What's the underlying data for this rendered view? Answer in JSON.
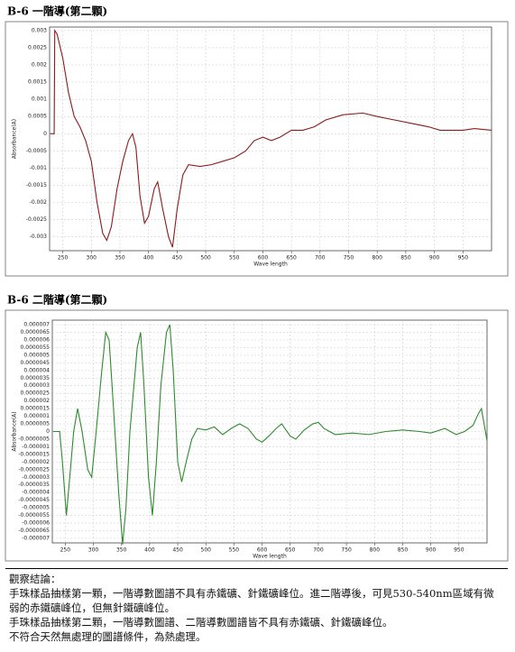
{
  "chart_data": [
    {
      "type": "line",
      "title": "B-6 一階導(第二顆)",
      "x_label": "Wave length",
      "y_label": "Absorbance(A)",
      "color": "#8b1a1a",
      "grid": true,
      "xlim": [
        227,
        1000
      ],
      "ylim": [
        -0.0034,
        0.0031
      ],
      "xticks": [
        250,
        300,
        350,
        400,
        450,
        500,
        550,
        600,
        650,
        700,
        750,
        800,
        850,
        900,
        950
      ],
      "yticks": [
        0.003,
        0.0025,
        0.002,
        0.0015,
        0.001,
        0.0005,
        0,
        -0.0005,
        -0.001,
        -0.0015,
        -0.002,
        -0.0025,
        -0.003
      ],
      "x": [
        228,
        235,
        236,
        240,
        250,
        260,
        270,
        280,
        290,
        300,
        310,
        320,
        327,
        335,
        345,
        355,
        365,
        372,
        378,
        385,
        393,
        400,
        410,
        416,
        425,
        435,
        442,
        450,
        460,
        470,
        490,
        510,
        530,
        550,
        570,
        585,
        600,
        615,
        630,
        650,
        670,
        690,
        710,
        740,
        775,
        800,
        830,
        860,
        890,
        910,
        930,
        950,
        970,
        1000
      ],
      "values": [
        0,
        0,
        0.003,
        0.0029,
        0.0022,
        0.0012,
        0.0005,
        0.0002,
        -0.0002,
        -0.0008,
        -0.002,
        -0.0029,
        -0.0031,
        -0.0027,
        -0.0016,
        -0.0008,
        -0.0002,
        0,
        -0.0004,
        -0.0018,
        -0.0026,
        -0.0024,
        -0.0016,
        -0.0014,
        -0.0022,
        -0.003,
        -0.0033,
        -0.0022,
        -0.0012,
        -0.0009,
        -0.00095,
        -0.0009,
        -0.0008,
        -0.0007,
        -0.0005,
        -0.0002,
        -0.0001,
        -0.0002,
        -0.0001,
        0.0001,
        0.0001,
        0.0002,
        0.0004,
        0.00055,
        0.0006,
        0.0005,
        0.0004,
        0.0003,
        0.0002,
        0.0001,
        0.0001,
        0.0001,
        0.00015,
        0.0001
      ]
    },
    {
      "type": "line",
      "title": "B-6 二階導(第二顆)",
      "x_label": "Wave length",
      "y_label": "Absorbance(A)",
      "color": "#2e8b2e",
      "grid": true,
      "xlim": [
        227,
        1000
      ],
      "ylim": [
        -7.3e-06,
        7.3e-06
      ],
      "xticks": [
        250,
        300,
        350,
        400,
        450,
        500,
        550,
        600,
        650,
        700,
        750,
        800,
        850,
        900,
        950
      ],
      "yticks": [
        7e-06,
        6.5e-06,
        6e-06,
        5.5e-06,
        5e-06,
        4.5e-06,
        4e-06,
        3.5e-06,
        3e-06,
        2.5e-06,
        2e-06,
        1.5e-06,
        1e-06,
        {
          "value": 5e-07,
          "label": "0.0000005"
        },
        0,
        {
          "value": -5e-07,
          "label": "-0.0000005"
        },
        -1e-06,
        -1.5e-06,
        -2e-06,
        -2.5e-06,
        -3e-06,
        -3.5e-06,
        -4e-06,
        -4.5e-06,
        -5e-06,
        -5.5e-06,
        -6e-06,
        -6.5e-06,
        -7e-06
      ],
      "x": [
        228,
        240,
        245,
        252,
        258,
        265,
        272,
        280,
        290,
        297,
        305,
        315,
        322,
        328,
        335,
        345,
        352,
        358,
        365,
        378,
        384,
        390,
        398,
        405,
        412,
        420,
        430,
        436,
        442,
        450,
        457,
        465,
        475,
        485,
        500,
        515,
        530,
        545,
        560,
        575,
        590,
        600,
        612,
        625,
        635,
        650,
        660,
        675,
        690,
        700,
        710,
        730,
        760,
        790,
        820,
        850,
        880,
        900,
        925,
        945,
        960,
        975,
        985,
        990,
        1000
      ],
      "values": [
        0,
        0,
        -2e-06,
        -5.5e-06,
        -3e-06,
        0,
        1.5e-06,
        0,
        -2.5e-06,
        -3e-06,
        0,
        4e-06,
        6.5e-06,
        6e-06,
        2e-06,
        -4e-06,
        -7.4e-06,
        -5e-06,
        0,
        5.5e-06,
        6.5e-06,
        3e-06,
        -3e-06,
        -5.5e-06,
        -2e-06,
        3e-06,
        6.5e-06,
        7e-06,
        4e-06,
        -2e-06,
        -3.3e-06,
        -2e-06,
        -5e-07,
        2e-07,
        1e-07,
        3e-07,
        -2e-07,
        2e-07,
        5e-07,
        2e-07,
        -5e-07,
        -7e-07,
        -3e-07,
        2e-07,
        5e-07,
        -3e-07,
        -5e-07,
        1e-07,
        5e-07,
        6e-07,
        2e-07,
        -2e-07,
        -1e-07,
        -2e-07,
        0,
        1e-07,
        0,
        -1e-07,
        2e-07,
        -2e-07,
        0,
        4e-07,
        1.2e-06,
        1.5e-06,
        -6e-07
      ]
    }
  ],
  "notes": {
    "heading": "觀察結論：",
    "lines": [
      "手珠樣品抽樣第一顆，一階導數圖譜不具有赤鐵礦、針鐵礦峰位。進二階導後，可見530-540nm區域有微弱的赤鐵礦峰位，但無針鐵礦峰位。",
      "手珠樣品抽樣第二顆，一階導數圖譜、二階導數圖譜皆不具有赤鐵礦、針鐵礦峰位。",
      "不符合天然無處理的圖譜條件，為熱處理。"
    ]
  }
}
